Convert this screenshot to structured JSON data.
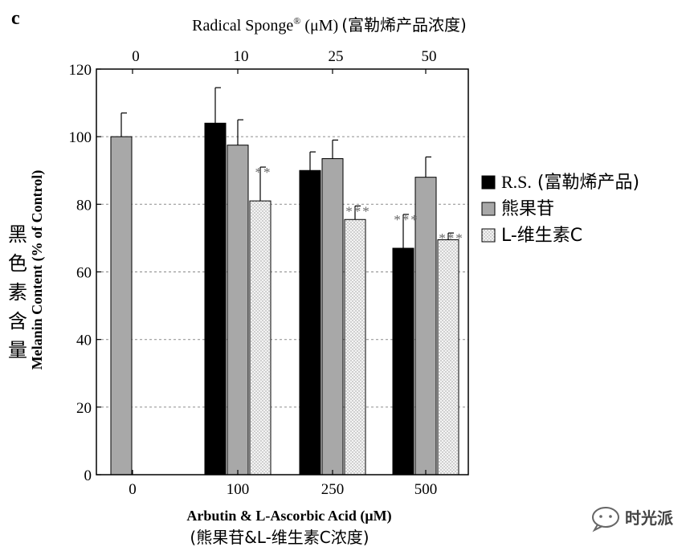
{
  "panel_label": "c",
  "top_axis": {
    "title": "Radical Sponge",
    "title_sup": "®",
    "title_unit": " (μM)",
    "title_cn": "(富勒烯产品浓度)",
    "ticks": [
      "0",
      "10",
      "25",
      "50"
    ]
  },
  "y_axis": {
    "label": "Melanin Content (% of Control)",
    "label_cn": [
      "黑",
      "色",
      "素",
      "含",
      "量"
    ]
  },
  "x_axis": {
    "label": "Arbutin & L-Ascorbic Acid (μM)",
    "label_cn": "(熊果苷&L-维生素C浓度)"
  },
  "legend": [
    {
      "name": "R.S.",
      "name_cn": " (富勒烯产品)"
    },
    {
      "name": "熊果苷",
      "name_cn": ""
    },
    {
      "name": "L-维生素C",
      "name_cn": ""
    }
  ],
  "watermark": {
    "text": "时光派"
  },
  "colors": {
    "rs": "#000000",
    "arbutin": "#a8a8a8",
    "vitc": "#eeeeee",
    "grid": "#9a9a9a"
  },
  "chart_data": {
    "type": "bar",
    "categories": [
      "0",
      "100",
      "250",
      "500"
    ],
    "top_categories": [
      "0",
      "10",
      "25",
      "50"
    ],
    "series": [
      {
        "name": "R.S.",
        "values": [
          null,
          104,
          90,
          67
        ],
        "errors": [
          null,
          10.5,
          5.5,
          10
        ]
      },
      {
        "name": "熊果苷",
        "values": [
          100,
          97.5,
          93.5,
          88
        ],
        "errors": [
          7,
          7.5,
          5.5,
          6
        ]
      },
      {
        "name": "L-维生素C",
        "values": [
          null,
          81,
          75.5,
          69.5
        ],
        "errors": [
          null,
          10,
          4,
          2
        ]
      }
    ],
    "significance": [
      {
        "series": "L-维生素C",
        "category": "100",
        "label": "**"
      },
      {
        "series": "L-维生素C",
        "category": "250",
        "label": "***"
      },
      {
        "series": "R.S.",
        "category": "500",
        "label": "***"
      },
      {
        "series": "L-维生素C",
        "category": "500",
        "label": "***"
      }
    ],
    "ylim": [
      0,
      120
    ],
    "yticks": [
      0,
      20,
      40,
      60,
      80,
      100,
      120
    ],
    "grid": true,
    "legend_position": "right"
  }
}
